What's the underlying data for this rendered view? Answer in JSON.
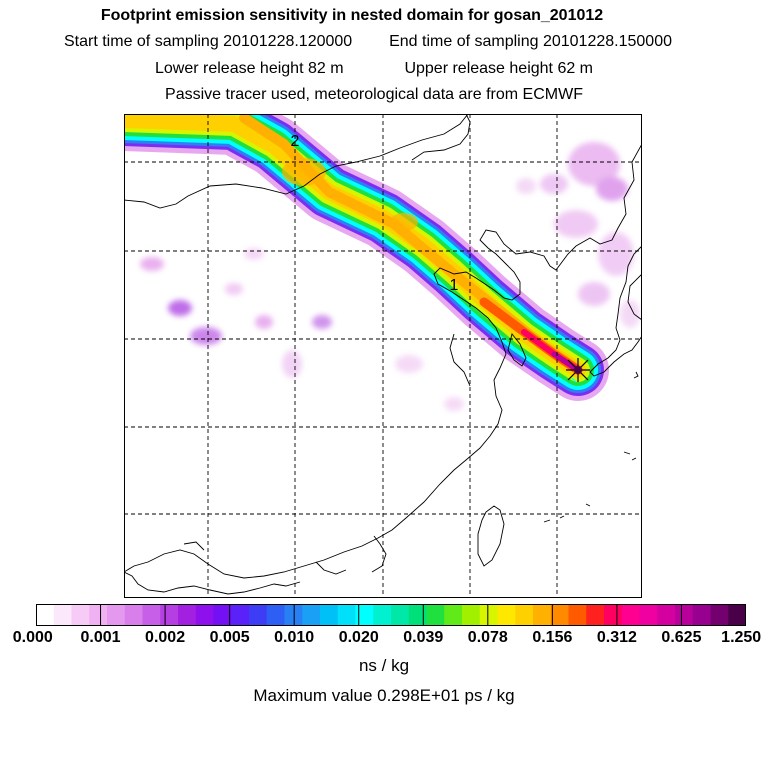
{
  "header": {
    "title": "Footprint emission sensitivity in nested domain for gosan_201012",
    "start_label": "Start time of sampling 20101228.120000",
    "end_label": "End time of sampling 20101228.150000",
    "lower_label": "Lower release height   82 m",
    "upper_label": "Upper release height   62 m",
    "info": "Passive tracer used, meteorological data are from ECMWF"
  },
  "map": {
    "markers": [
      "1",
      "2"
    ],
    "receptor_icon": "receptor-star-icon"
  },
  "colorbar": {
    "colors": [
      "#ffffff",
      "#fbe8fb",
      "#f6ccf6",
      "#efb1f1",
      "#e498ee",
      "#d97fec",
      "#c85fe8",
      "#b63fe4",
      "#a320e0",
      "#8e10ec",
      "#7410f4",
      "#5a22f8",
      "#3d3df6",
      "#2e5ff5",
      "#2880f4",
      "#1aa0f5",
      "#00c0f8",
      "#00e0fb",
      "#00ffff",
      "#00f0d0",
      "#00e8a8",
      "#00e07a",
      "#20e040",
      "#60ea1a",
      "#a0f000",
      "#d8f500",
      "#ffe800",
      "#ffd000",
      "#ffb000",
      "#ff8a00",
      "#ff5a00",
      "#ff2020",
      "#ff0060",
      "#ff0090",
      "#f000a0",
      "#d400a0",
      "#b8009a",
      "#980090",
      "#740070",
      "#4a0048"
    ],
    "ticks": [
      "0.000",
      "0.001",
      "0.002",
      "0.005",
      "0.010",
      "0.020",
      "0.039",
      "0.078",
      "0.156",
      "0.312",
      "0.625",
      "1.250"
    ],
    "units": "ns / kg",
    "max_value": "Maximum value  0.298E+01 ps / kg"
  }
}
